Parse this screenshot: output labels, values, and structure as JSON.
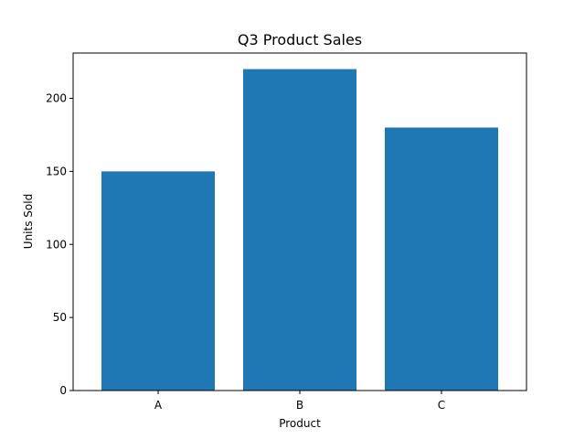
{
  "chart_data": {
    "type": "bar",
    "title": "Q3 Product Sales",
    "xlabel": "Product",
    "ylabel": "Units Sold",
    "categories": [
      "A",
      "B",
      "C"
    ],
    "values": [
      150,
      220,
      180
    ],
    "ylim": [
      0,
      231
    ],
    "yticks": [
      0,
      50,
      100,
      150,
      200
    ],
    "grid": false,
    "bar_color": "#1f77b4"
  }
}
